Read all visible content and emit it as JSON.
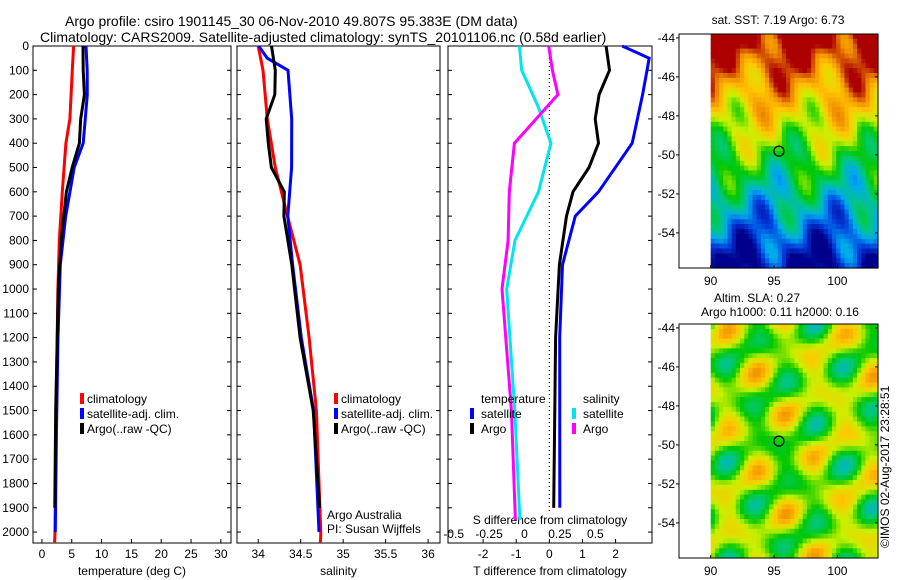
{
  "title_line1": "Argo profile: csiro 1901145_30 06-Nov-2010 49.807S 95.383E (DM data)",
  "title_line2": "Climatology: CARS2009. Satellite-adjusted climatology: synTS_20101106.nc (0.58d earlier)",
  "credit": "©IMOS 02-Aug-2017 23:28:51",
  "colors": {
    "climatology": "#ff0000",
    "satellite": "#0000ff",
    "argo": "#000000",
    "sal_satellite": "#00e5ee",
    "sal_argo": "#ff00ff"
  },
  "chart_data": [
    {
      "type": "line",
      "xlabel": "temperature (deg C)",
      "ylabel": "",
      "xlim": [
        -1.5,
        31.7
      ],
      "ylim": [
        2045,
        0
      ],
      "xticks": [
        "0",
        "5",
        "10",
        "15",
        "20",
        "25",
        "30"
      ],
      "xtickvals": [
        0,
        5,
        10,
        15,
        20,
        25,
        30
      ],
      "yticks": [
        "0",
        "100",
        "200",
        "300",
        "400",
        "500",
        "600",
        "700",
        "800",
        "900",
        "1000",
        "1100",
        "1200",
        "1300",
        "1400",
        "1500",
        "1600",
        "1700",
        "1800",
        "1900",
        "2000"
      ],
      "legend": [
        "climatology",
        "satellite-adj. clim.",
        "Argo(..raw -QC)"
      ],
      "series": [
        {
          "name": "climatology",
          "color": "#ff0000",
          "depth": [
            0,
            100,
            300,
            400,
            600,
            800,
            1000,
            1500,
            2000,
            2045
          ],
          "values": [
            5.3,
            5.0,
            4.6,
            4.0,
            3.5,
            3.0,
            2.7,
            2.3,
            2.1,
            2.1
          ]
        },
        {
          "name": "satellite-adj. clim.",
          "color": "#0000ff",
          "depth": [
            0,
            100,
            200,
            400,
            500,
            700,
            900,
            1200,
            1600,
            2000
          ],
          "values": [
            7.3,
            7.5,
            7.6,
            7.0,
            5.5,
            4.0,
            3.0,
            2.6,
            2.4,
            2.3
          ]
        },
        {
          "name": "Argo",
          "color": "#000000",
          "depth": [
            0,
            100,
            200,
            300,
            400,
            500,
            600,
            800,
            1000,
            1500,
            1900
          ],
          "values": [
            6.8,
            6.9,
            7.2,
            6.6,
            6.3,
            5.0,
            4.0,
            3.2,
            2.8,
            2.4,
            2.2
          ]
        }
      ]
    },
    {
      "type": "line",
      "xlabel": "salinity",
      "xlim": [
        33.75,
        36.14
      ],
      "ylim": [
        2045,
        0
      ],
      "xticks": [
        "34",
        "34.5",
        "35",
        "35.5",
        "36"
      ],
      "xtickvals": [
        34,
        34.5,
        35,
        35.5,
        36
      ],
      "legend": [
        "climatology",
        "satellite-adj. clim.",
        "Argo(..raw -QC)"
      ],
      "annotation": [
        "Argo Australia",
        "PI: Susan Wijffels"
      ],
      "series": [
        {
          "name": "climatology",
          "color": "#ff0000",
          "depth": [
            0,
            100,
            300,
            500,
            700,
            900,
            1200,
            1500,
            2000,
            2045
          ],
          "values": [
            34.0,
            34.05,
            34.1,
            34.2,
            34.35,
            34.5,
            34.6,
            34.68,
            34.73,
            34.73
          ]
        },
        {
          "name": "satellite-adj. clim.",
          "color": "#0000ff",
          "depth": [
            0,
            50,
            100,
            300,
            500,
            700,
            900,
            1200,
            1500,
            2000
          ],
          "values": [
            34.0,
            34.1,
            34.35,
            34.4,
            34.4,
            34.35,
            34.4,
            34.5,
            34.65,
            34.72
          ]
        },
        {
          "name": "Argo",
          "color": "#000000",
          "depth": [
            0,
            100,
            200,
            300,
            400,
            500,
            600,
            700,
            900,
            1200,
            1500,
            1900
          ],
          "values": [
            34.15,
            34.2,
            34.2,
            34.1,
            34.12,
            34.15,
            34.3,
            34.3,
            34.4,
            34.5,
            34.65,
            34.72
          ]
        }
      ]
    },
    {
      "type": "line",
      "xlabel": "T difference from climatology",
      "x2label": "S difference from climatology",
      "xlim": [
        -3.06,
        3.1
      ],
      "s_xlim": [
        -0.54,
        0.9
      ],
      "ylim": [
        2045,
        0
      ],
      "xticks": [
        "-2",
        "-1",
        "0",
        "1",
        "2"
      ],
      "xtickvals": [
        -2,
        -1,
        0,
        1,
        2
      ],
      "s_xticks": [
        "-0.5",
        "-0.25",
        "0",
        "0.25",
        "0.5"
      ],
      "s_xtickvals": [
        -0.5,
        -0.25,
        0,
        0.25,
        0.5
      ],
      "legend_temperature": {
        "title": "temperature",
        "items": [
          "satellite",
          "Argo"
        ]
      },
      "legend_salinity": {
        "title": "salinity",
        "items": [
          "satellite",
          "Argo"
        ]
      },
      "series": [
        {
          "name": "T satellite",
          "color": "#0000ff",
          "scale": "T",
          "depth": [
            0,
            50,
            200,
            400,
            600,
            700,
            900,
            1200,
            1900
          ],
          "values": [
            2.2,
            3.0,
            2.8,
            2.5,
            1.5,
            0.8,
            0.4,
            0.3,
            0.3
          ]
        },
        {
          "name": "T Argo",
          "color": "#000000",
          "scale": "T",
          "depth": [
            0,
            100,
            200,
            300,
            400,
            500,
            600,
            700,
            900,
            1200,
            1900
          ],
          "values": [
            1.7,
            1.8,
            1.5,
            1.4,
            1.5,
            1.2,
            0.7,
            0.5,
            0.3,
            0.2,
            0.15
          ]
        },
        {
          "name": "S satellite",
          "color": "#00e5ee",
          "scale": "S",
          "depth": [
            0,
            100,
            250,
            400,
            600,
            800,
            1000,
            1500,
            1950
          ],
          "values": [
            -0.04,
            -0.02,
            0.1,
            0.19,
            0.1,
            -0.07,
            -0.13,
            -0.07,
            -0.03
          ]
        },
        {
          "name": "S Argo",
          "color": "#ff00ff",
          "scale": "S",
          "depth": [
            0,
            100,
            200,
            400,
            600,
            800,
            1000,
            1500,
            1950
          ],
          "values": [
            0.17,
            0.2,
            0.24,
            -0.07,
            -0.11,
            -0.12,
            -0.16,
            -0.09,
            -0.06
          ]
        }
      ]
    }
  ],
  "maps": [
    {
      "title": [
        "sat. SST: 7.19 Argo: 6.73"
      ],
      "yticks": [
        "-44",
        "-46",
        "-48",
        "-50",
        "-52",
        "-54"
      ],
      "xticks": [
        "90",
        "95",
        "100"
      ],
      "kind": "sst"
    },
    {
      "title": [
        "Altim. SLA: 0.27",
        "Argo h1000: 0.11 h2000: 0.16"
      ],
      "yticks": [
        "-44",
        "-46",
        "-48",
        "-50",
        "-52",
        "-54"
      ],
      "xticks": [
        "90",
        "95",
        "100"
      ],
      "kind": "sla"
    }
  ]
}
